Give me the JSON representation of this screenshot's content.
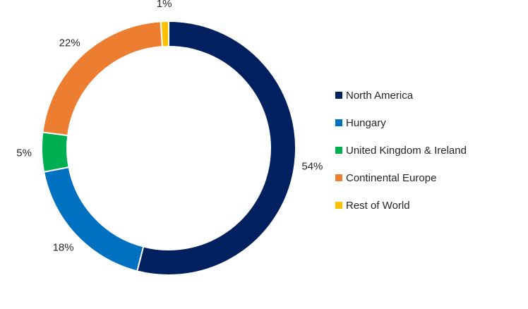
{
  "chart_data": {
    "type": "pie",
    "variant": "donut",
    "title": "",
    "categories": [
      "North America",
      "Hungary",
      "United Kingdom & Ireland",
      "Continental Europe",
      "Rest of World"
    ],
    "values": [
      54,
      18,
      5,
      22,
      1
    ],
    "labels": [
      "54%",
      "18%",
      "5%",
      "22%",
      "1%"
    ],
    "unit": "%",
    "colors": [
      "#002060",
      "#0070C0",
      "#00B050",
      "#ED7D31",
      "#FFC000"
    ],
    "start_angle_deg": 0,
    "direction": "clockwise",
    "legend_position": "right",
    "series": [
      {
        "values": [
          54,
          18,
          5,
          22,
          1
        ]
      }
    ]
  }
}
